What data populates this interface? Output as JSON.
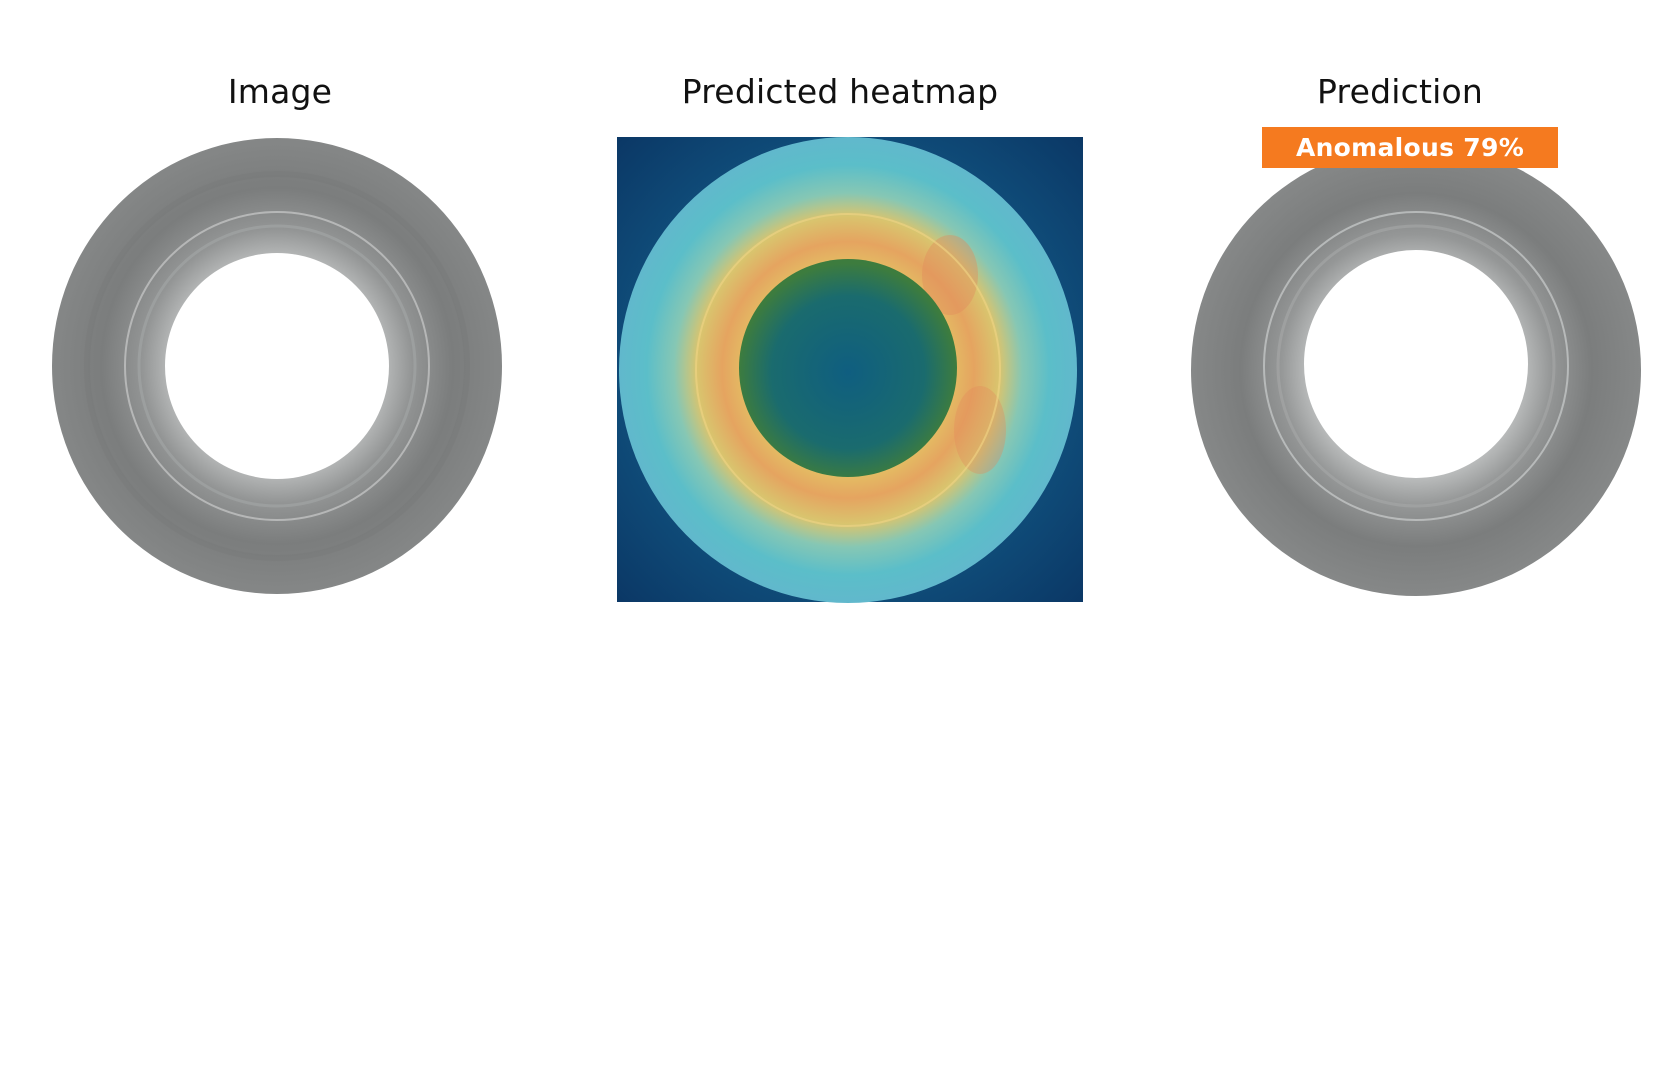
{
  "panels": {
    "image": {
      "title": "Image"
    },
    "heatmap": {
      "title": "Predicted heatmap"
    },
    "prediction": {
      "title": "Prediction",
      "badge_label": "Anomalous 79%",
      "anomaly_score": 0.79
    }
  },
  "colors": {
    "ring_gray": "#7e8080",
    "heatmap_background": "#0e3d6e",
    "heatmap_outer": "#5fc0c8",
    "heatmap_hot": "#e2a85a",
    "badge": "#f57a1f"
  }
}
